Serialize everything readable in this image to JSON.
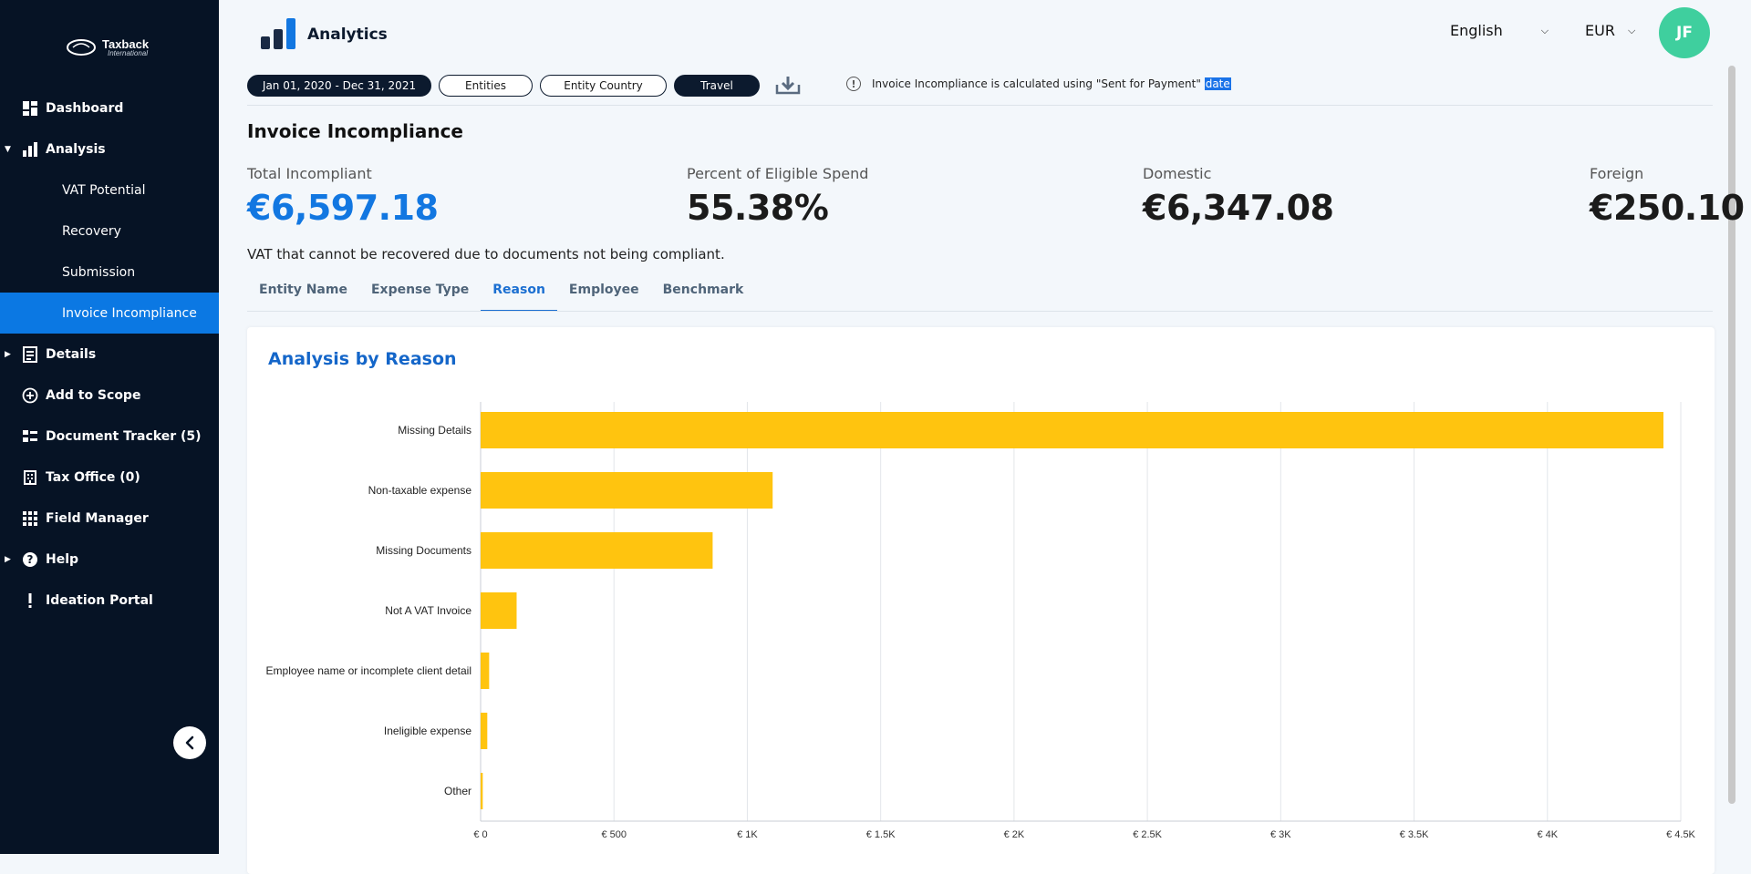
{
  "sidebar": {
    "logo": {
      "name": "Taxback",
      "sub": "International"
    },
    "items": [
      {
        "label": "Dashboard"
      },
      {
        "label": "Analysis"
      },
      {
        "label": "VAT Potential"
      },
      {
        "label": "Recovery"
      },
      {
        "label": "Submission"
      },
      {
        "label": "Invoice Incompliance"
      },
      {
        "label": "Details"
      },
      {
        "label": "Add to Scope"
      },
      {
        "label": "Document Tracker (5)"
      },
      {
        "label": "Tax Office (0)"
      },
      {
        "label": "Field Manager"
      },
      {
        "label": "Help"
      },
      {
        "label": "Ideation Portal"
      }
    ]
  },
  "header": {
    "title": "Analytics",
    "language": "English",
    "currency": "EUR",
    "avatar": "JF"
  },
  "filters": {
    "date_range": "Jan 01, 2020 - Dec 31, 2021",
    "entities": "Entities",
    "entity_country": "Entity Country",
    "travel": "Travel",
    "info_main": "Invoice Incompliance is calculated using \"Sent for Payment\"",
    "info_hl": "date"
  },
  "page": {
    "title": "Invoice Incompliance",
    "description": "VAT that cannot be recovered due to documents not being compliant."
  },
  "metrics": [
    {
      "label": "Total Incompliant",
      "value": "€6,597.18"
    },
    {
      "label": "Percent of Eligible Spend",
      "value": "55.38%"
    },
    {
      "label": "Domestic",
      "value": "€6,347.08"
    },
    {
      "label": "Foreign",
      "value": "€250.10"
    }
  ],
  "tabs": [
    {
      "label": "Entity Name"
    },
    {
      "label": "Expense Type"
    },
    {
      "label": "Reason"
    },
    {
      "label": "Employee"
    },
    {
      "label": "Benchmark"
    }
  ],
  "card": {
    "title": "Analysis by Reason"
  },
  "colors": {
    "sidebar_bg": "#061325",
    "active_nav": "#0b78e3",
    "accent_blue": "#1277e1",
    "bar": "#ffc40f",
    "avatar": "#3fcf9e"
  },
  "chart_data": {
    "type": "bar",
    "orientation": "horizontal",
    "categories": [
      "Missing Details",
      "Non-taxable expense",
      "Missing Documents",
      "Not A VAT Invoice",
      "Employee name or incomplete client detail",
      "Ineligible expense",
      "Other"
    ],
    "values": [
      4435,
      1095,
      870,
      135,
      32,
      25,
      8
    ],
    "xlim": [
      0,
      4500
    ],
    "xticks": [
      0,
      500,
      1000,
      1500,
      2000,
      2500,
      3000,
      3500,
      4000,
      4500
    ],
    "xtick_labels": [
      "€ 0",
      "€ 500",
      "€ 1K",
      "€ 1.5K",
      "€ 2K",
      "€ 2.5K",
      "€ 3K",
      "€ 3.5K",
      "€ 4K",
      "€ 4.5K"
    ],
    "grid": true,
    "color": "#ffc40f"
  }
}
